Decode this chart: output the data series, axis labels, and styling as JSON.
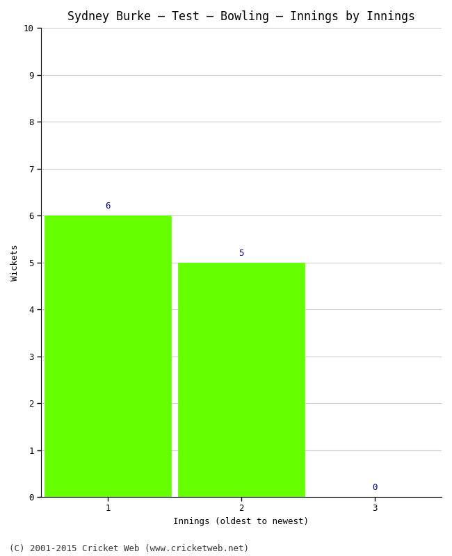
{
  "title": "Sydney Burke – Test – Bowling – Innings by Innings",
  "xlabel": "Innings (oldest to newest)",
  "ylabel": "Wickets",
  "categories": [
    1,
    2,
    3
  ],
  "values": [
    6,
    5,
    0
  ],
  "bar_color": "#66ff00",
  "bar_edge_color": "#66ff00",
  "ylim": [
    0,
    10
  ],
  "yticks": [
    0,
    1,
    2,
    3,
    4,
    5,
    6,
    7,
    8,
    9,
    10
  ],
  "xticks": [
    1,
    2,
    3
  ],
  "annotation_color": "#000080",
  "annotation_fontsize": 9,
  "title_fontsize": 12,
  "axis_label_fontsize": 9,
  "tick_fontsize": 9,
  "footer": "(C) 2001-2015 Cricket Web (www.cricketweb.net)",
  "footer_fontsize": 9,
  "background_color": "#ffffff",
  "grid_color": "#cccccc",
  "xlim": [
    0.5,
    3.5
  ],
  "bar_width": 0.95
}
